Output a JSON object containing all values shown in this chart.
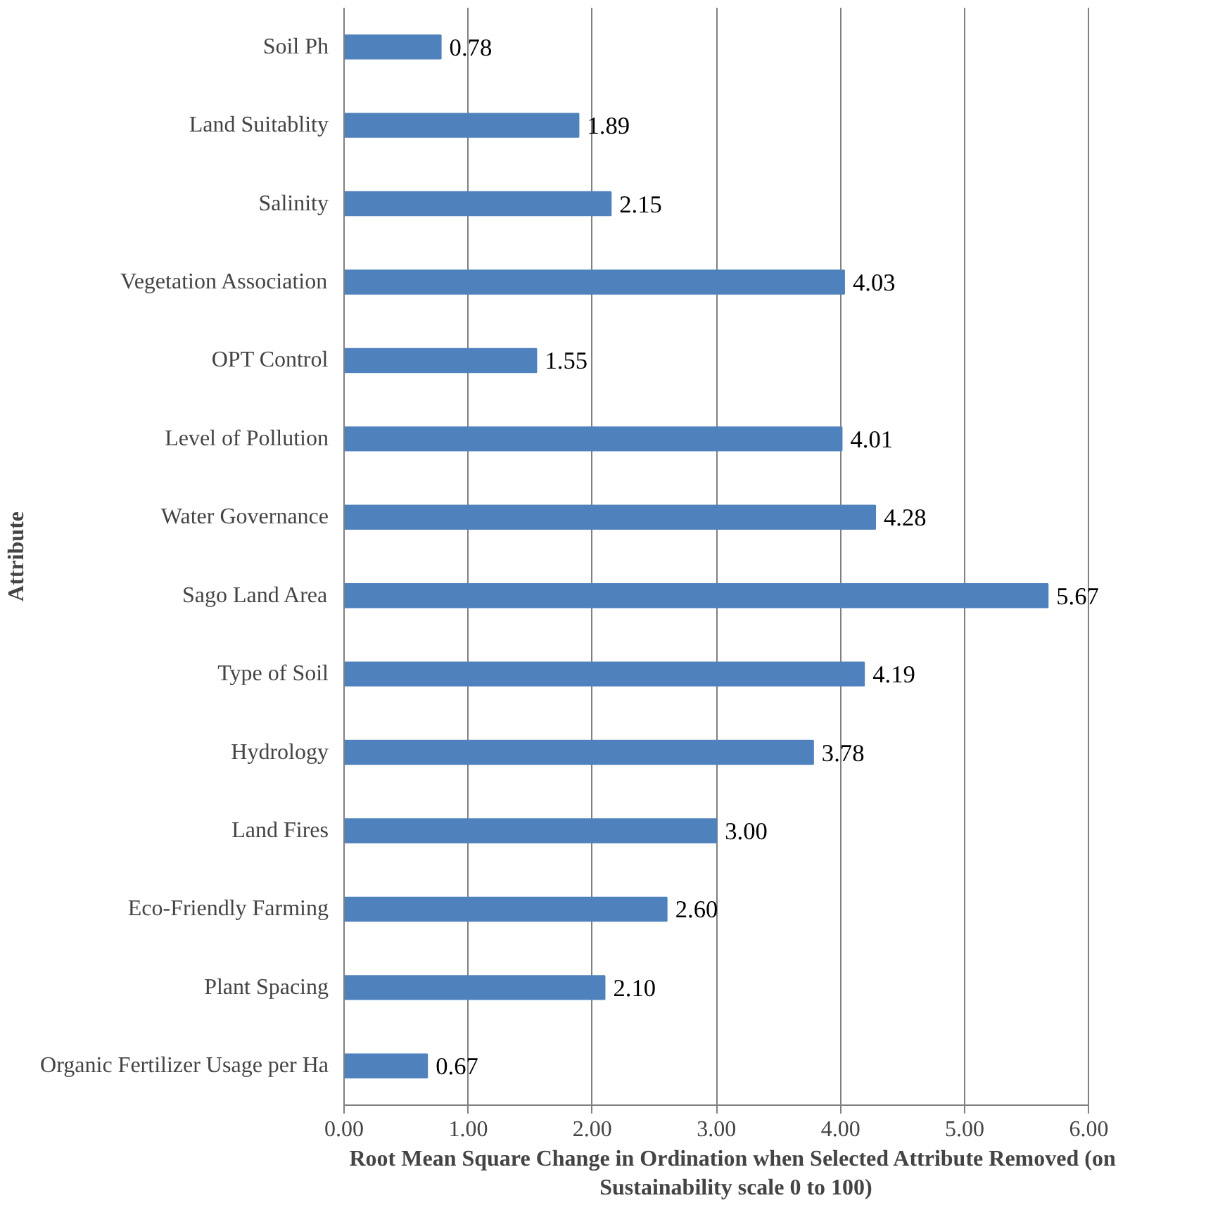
{
  "chart_data": {
    "type": "bar",
    "orientation": "horizontal",
    "xlabel": "Root Mean Square Change in Ordination  when Selected Attribute  Removed (on Sustainability  scale 0 to 100)",
    "ylabel": "Attribute",
    "categories": [
      "Soil Ph",
      "Land Suitablity",
      "Salinity",
      "Vegetation Association",
      "OPT Control",
      "Level of Pollution",
      "Water Governance",
      "Sago Land Area",
      "Type of Soil",
      "Hydrology",
      "Land Fires",
      "Eco-Friendly Farming",
      "Plant Spacing",
      "Organic Fertilizer Usage per Ha"
    ],
    "values": [
      0.78,
      1.89,
      2.15,
      4.03,
      1.55,
      4.01,
      4.28,
      5.67,
      4.19,
      3.78,
      3.0,
      2.6,
      2.1,
      0.67
    ],
    "value_labels": [
      "0.78",
      "1.89",
      "2.15",
      "4.03",
      "1.55",
      "4.01",
      "4.28",
      "5.67",
      "4.19",
      "3.78",
      "3.00",
      "2.60",
      "2.10",
      "0.67"
    ],
    "color": "#4f81bd",
    "xlim": [
      0,
      6
    ],
    "xticks": [
      {
        "value": 0,
        "label": "0.00"
      },
      {
        "value": 1,
        "label": "1.00"
      },
      {
        "value": 2,
        "label": "2.00"
      },
      {
        "value": 3,
        "label": "3.00"
      },
      {
        "value": 4,
        "label": "4.00"
      },
      {
        "value": 5,
        "label": "5.00"
      },
      {
        "value": 6,
        "label": "6.00"
      }
    ],
    "grid": "x"
  }
}
